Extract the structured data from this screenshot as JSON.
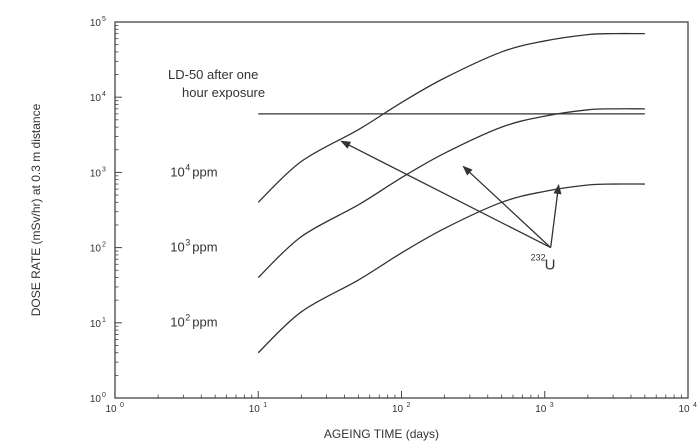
{
  "chart_data": {
    "type": "line",
    "xlabel": "AGEING TIME (days)",
    "ylabel": "DOSE RATE (mSv/hr) at 0.3 m distance",
    "xscale": "log",
    "yscale": "log",
    "xlim": [
      1,
      10000
    ],
    "ylim": [
      1,
      100000
    ],
    "x_ticks": [
      {
        "base": "10",
        "exp": "0"
      },
      {
        "base": "10",
        "exp": "1"
      },
      {
        "base": "10",
        "exp": "2"
      },
      {
        "base": "10",
        "exp": "3"
      },
      {
        "base": "10",
        "exp": "4"
      }
    ],
    "y_ticks": [
      {
        "base": "10",
        "exp": "0"
      },
      {
        "base": "10",
        "exp": "1"
      },
      {
        "base": "10",
        "exp": "2"
      },
      {
        "base": "10",
        "exp": "3"
      },
      {
        "base": "10",
        "exp": "4"
      },
      {
        "base": "10",
        "exp": "5"
      }
    ],
    "series": [
      {
        "label_base": "10",
        "label_exp": "4",
        "label_suffix": "ppm",
        "points": [
          [
            10,
            400
          ],
          [
            20,
            1400
          ],
          [
            50,
            3700
          ],
          [
            100,
            8500
          ],
          [
            200,
            18000
          ],
          [
            500,
            40000
          ],
          [
            1000,
            56000
          ],
          [
            2000,
            68000
          ],
          [
            3000,
            70000
          ],
          [
            5000,
            70000
          ]
        ]
      },
      {
        "label_base": "10",
        "label_exp": "3",
        "label_suffix": "ppm",
        "points": [
          [
            10,
            40
          ],
          [
            20,
            140
          ],
          [
            50,
            370
          ],
          [
            100,
            850
          ],
          [
            200,
            1800
          ],
          [
            500,
            4000
          ],
          [
            1000,
            5600
          ],
          [
            2000,
            6800
          ],
          [
            3000,
            7000
          ],
          [
            5000,
            7000
          ]
        ]
      },
      {
        "label_base": "10",
        "label_exp": "2",
        "label_suffix": "ppm",
        "points": [
          [
            10,
            4
          ],
          [
            20,
            14
          ],
          [
            50,
            37
          ],
          [
            100,
            85
          ],
          [
            200,
            180
          ],
          [
            500,
            400
          ],
          [
            1000,
            560
          ],
          [
            2000,
            680
          ],
          [
            3000,
            700
          ],
          [
            5000,
            700
          ]
        ]
      }
    ],
    "reference_line": {
      "label": [
        "LD-50 after one",
        "hour exposure"
      ],
      "y": 6000,
      "x_range": [
        10,
        5000
      ]
    },
    "annotation": {
      "label_mass": "232",
      "label_element": "U",
      "origin": [
        1100,
        100
      ],
      "arrow_targets": [
        [
          38,
          2600
        ],
        [
          270,
          1200
        ],
        [
          1250,
          680
        ]
      ]
    },
    "grid": false,
    "legend": "none"
  }
}
